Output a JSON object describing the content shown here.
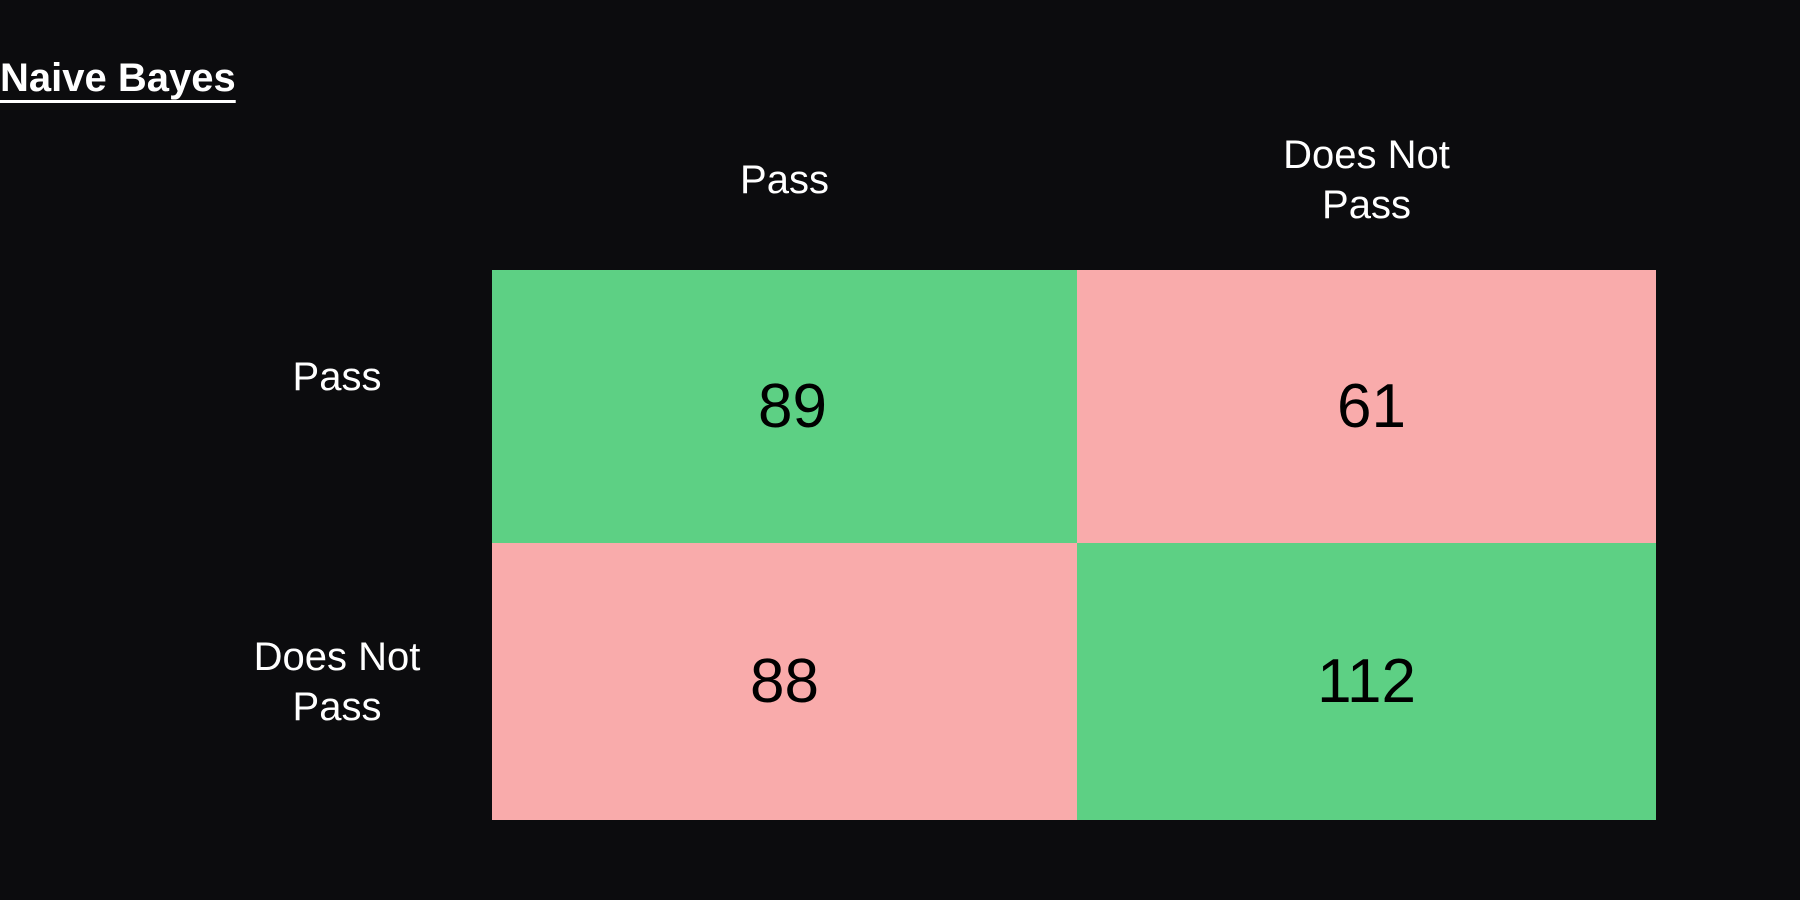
{
  "title": "Naive Bayes",
  "colors": {
    "background": "#0c0c0e",
    "correct": "#5dd084",
    "incorrect": "#f9abab",
    "header_text": "#ffffff",
    "cell_text": "#000000"
  },
  "chart_data": {
    "type": "heatmap",
    "title": "Naive Bayes",
    "columns": [
      "Pass",
      "Does  Not\nPass"
    ],
    "rows": [
      "Pass",
      "Does Not\nPass"
    ],
    "values": [
      [
        89,
        61
      ],
      [
        88,
        112
      ]
    ],
    "cell_colors": [
      [
        "#5dd084",
        "#f9abab"
      ],
      [
        "#f9abab",
        "#5dd084"
      ]
    ]
  }
}
